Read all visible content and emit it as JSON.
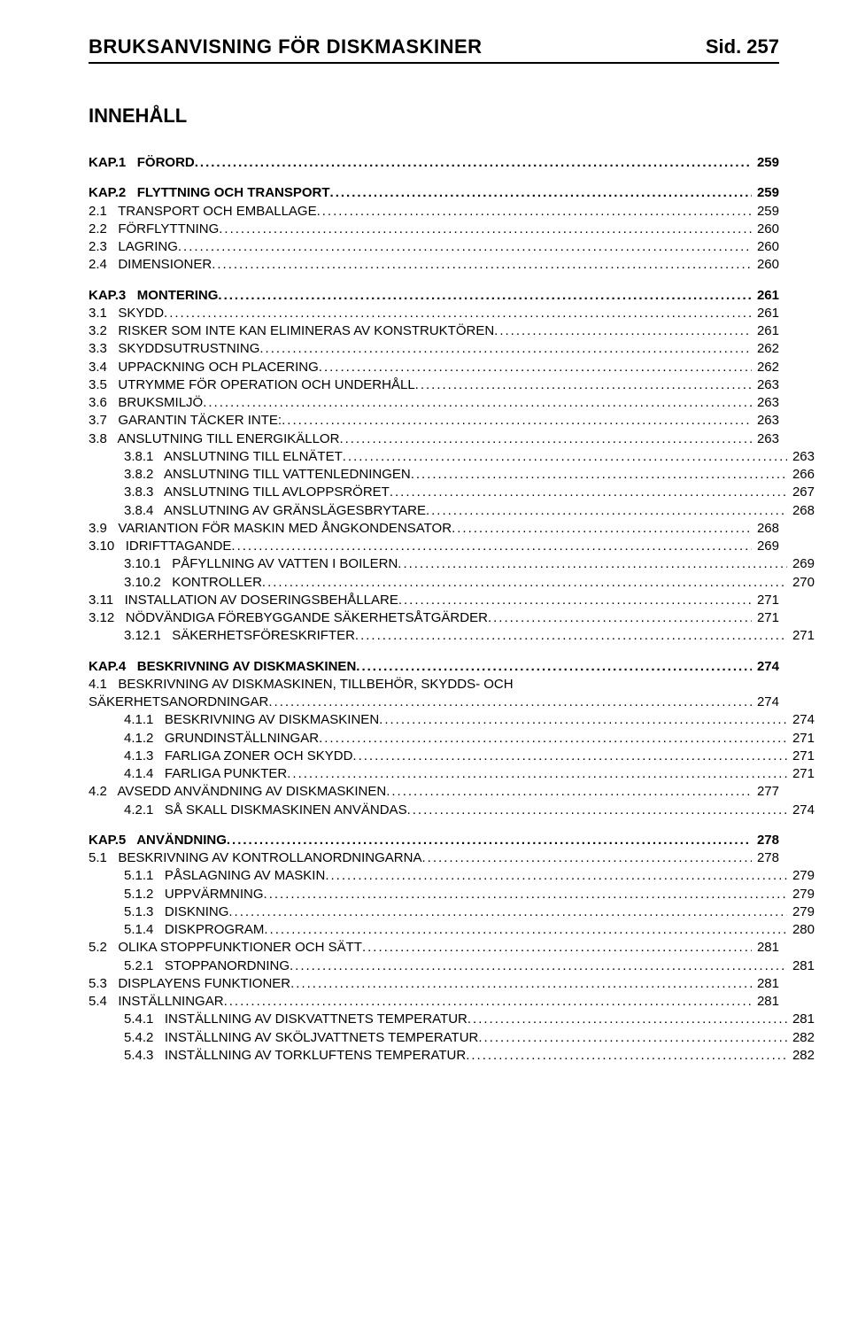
{
  "header": {
    "title": "BRUKSANVISNING FÖR DISKMASKINER",
    "page_label": "Sid. 257"
  },
  "toc_title": "INNEHÅLL",
  "leader_char": ".",
  "entries": [
    {
      "indent": 0,
      "section": true,
      "num": "KAP.1",
      "label": "FÖRORD",
      "page": "259"
    },
    {
      "indent": 0,
      "section": true,
      "num": "KAP.2",
      "label": "FLYTTNING OCH TRANSPORT",
      "page": "259"
    },
    {
      "indent": 1,
      "section": false,
      "num": "2.1",
      "label": "TRANSPORT OCH EMBALLAGE",
      "page": "259"
    },
    {
      "indent": 1,
      "section": false,
      "num": "2.2",
      "label": "FÖRFLYTTNING",
      "page": "260"
    },
    {
      "indent": 1,
      "section": false,
      "num": "2.3",
      "label": "LAGRING",
      "page": "260"
    },
    {
      "indent": 1,
      "section": false,
      "num": "2.4",
      "label": "DIMENSIONER",
      "page": "260"
    },
    {
      "indent": 0,
      "section": true,
      "num": "KAP.3",
      "label": "MONTERING",
      "page": "261"
    },
    {
      "indent": 1,
      "section": false,
      "num": "3.1",
      "label": "SKYDD",
      "page": "261"
    },
    {
      "indent": 1,
      "section": false,
      "num": "3.2",
      "label": "RISKER SOM INTE KAN ELIMINERAS AV KONSTRUKTÖREN",
      "page": "261"
    },
    {
      "indent": 1,
      "section": false,
      "num": "3.3",
      "label": "SKYDDSUTRUSTNING",
      "page": "262"
    },
    {
      "indent": 1,
      "section": false,
      "num": "3.4",
      "label": "UPPACKNING OCH PLACERING",
      "page": "262"
    },
    {
      "indent": 1,
      "section": false,
      "num": "3.5",
      "label": "UTRYMME FÖR OPERATION OCH UNDERHÅLL",
      "page": "263"
    },
    {
      "indent": 1,
      "section": false,
      "num": "3.6",
      "label": "BRUKSMILJÖ",
      "page": "263"
    },
    {
      "indent": 1,
      "section": false,
      "num": "3.7",
      "label": "GARANTIN TÄCKER INTE:",
      "page": "263"
    },
    {
      "indent": 1,
      "section": false,
      "num": "3.8",
      "label": "ANSLUTNING TILL ENERGIKÄLLOR",
      "page": "263"
    },
    {
      "indent": 2,
      "section": false,
      "num": "3.8.1",
      "label": "ANSLUTNING TILL ELNÄTET",
      "page": "263"
    },
    {
      "indent": 2,
      "section": false,
      "num": "3.8.2",
      "label": "ANSLUTNING TILL VATTENLEDNINGEN",
      "page": "266"
    },
    {
      "indent": 2,
      "section": false,
      "num": "3.8.3",
      "label": "ANSLUTNING TILL AVLOPPSRÖRET",
      "page": "267"
    },
    {
      "indent": 2,
      "section": false,
      "num": "3.8.4",
      "label": "ANSLUTNING AV GRÄNSLÄGESBRYTARE",
      "page": "268"
    },
    {
      "indent": 1,
      "section": false,
      "num": "3.9",
      "label": "VARIANTION FÖR MASKIN MED ÅNGKONDENSATOR",
      "page": "268"
    },
    {
      "indent": 1,
      "section": false,
      "num": "3.10",
      "label": "IDRIFTTAGANDE",
      "page": "269"
    },
    {
      "indent": 2,
      "section": false,
      "num": "3.10.1",
      "label": "PÅFYLLNING AV VATTEN I BOILERN",
      "page": "269"
    },
    {
      "indent": 2,
      "section": false,
      "num": "3.10.2",
      "label": "KONTROLLER",
      "page": "270"
    },
    {
      "indent": 1,
      "section": false,
      "num": "3.11",
      "label": "INSTALLATION AV DOSERINGSBEHÅLLARE",
      "page": "271"
    },
    {
      "indent": 1,
      "section": false,
      "num": "3.12",
      "label": "NÖDVÄNDIGA FÖREBYGGANDE SÄKERHETSÅTGÄRDER",
      "page": "271"
    },
    {
      "indent": 2,
      "section": false,
      "num": "3.12.1",
      "label": "SÄKERHETSFÖRESKRIFTER",
      "page": "271"
    },
    {
      "indent": 0,
      "section": true,
      "num": "KAP.4",
      "label": "BESKRIVNING AV DISKMASKINEN",
      "page": "274"
    },
    {
      "indent": 1,
      "section": false,
      "num": "4.1",
      "label": "BESKRIVNING AV DISKMASKINEN, TILLBEHÖR, SKYDDS- OCH SÄKERHETSANORDNINGAR",
      "page": "274",
      "wrap": true
    },
    {
      "indent": 2,
      "section": false,
      "num": "4.1.1",
      "label": "BESKRIVNING AV DISKMASKINEN",
      "page": "274"
    },
    {
      "indent": 2,
      "section": false,
      "num": "4.1.2",
      "label": "GRUNDINSTÄLLNINGAR",
      "page": "271"
    },
    {
      "indent": 2,
      "section": false,
      "num": "4.1.3",
      "label": "FARLIGA ZONER OCH SKYDD",
      "page": "271"
    },
    {
      "indent": 2,
      "section": false,
      "num": "4.1.4",
      "label": "FARLIGA PUNKTER",
      "page": "271"
    },
    {
      "indent": 1,
      "section": false,
      "num": "4.2",
      "label": "AVSEDD ANVÄNDNING AV DISKMASKINEN",
      "page": "277"
    },
    {
      "indent": 2,
      "section": false,
      "num": "4.2.1",
      "label": "SÅ SKALL DISKMASKINEN ANVÄNDAS",
      "page": "274"
    },
    {
      "indent": 0,
      "section": true,
      "num": "KAP.5",
      "label": "ANVÄNDNING",
      "page": "278"
    },
    {
      "indent": 1,
      "section": false,
      "num": "5.1",
      "label": "BESKRIVNING AV KONTROLLANORDNINGARNA",
      "page": "278"
    },
    {
      "indent": 2,
      "section": false,
      "num": "5.1.1",
      "label": "PÅSLAGNING AV MASKIN",
      "page": "279"
    },
    {
      "indent": 2,
      "section": false,
      "num": "5.1.2",
      "label": "UPPVÄRMNING",
      "page": "279"
    },
    {
      "indent": 2,
      "section": false,
      "num": "5.1.3",
      "label": "DISKNING",
      "page": "279"
    },
    {
      "indent": 2,
      "section": false,
      "num": "5.1.4",
      "label": "DISKPROGRAM",
      "page": "280"
    },
    {
      "indent": 1,
      "section": false,
      "num": "5.2",
      "label": "OLIKA STOPPFUNKTIONER OCH SÄTT",
      "page": "281"
    },
    {
      "indent": 2,
      "section": false,
      "num": "5.2.1",
      "label": "STOPPANORDNING",
      "page": "281"
    },
    {
      "indent": 1,
      "section": false,
      "num": "5.3",
      "label": "DISPLAYENS FUNKTIONER",
      "page": "281"
    },
    {
      "indent": 1,
      "section": false,
      "num": "5.4",
      "label": "INSTÄLLNINGAR",
      "page": "281"
    },
    {
      "indent": 2,
      "section": false,
      "num": "5.4.1",
      "label": "INSTÄLLNING AV DISKVATTNETS TEMPERATUR",
      "page": "281"
    },
    {
      "indent": 2,
      "section": false,
      "num": "5.4.2",
      "label": "INSTÄLLNING AV SKÖLJVATTNETS TEMPERATUR",
      "page": "282"
    },
    {
      "indent": 2,
      "section": false,
      "num": "5.4.3",
      "label": "INSTÄLLNING AV TORKLUFTENS TEMPERATUR",
      "page": "282"
    }
  ]
}
